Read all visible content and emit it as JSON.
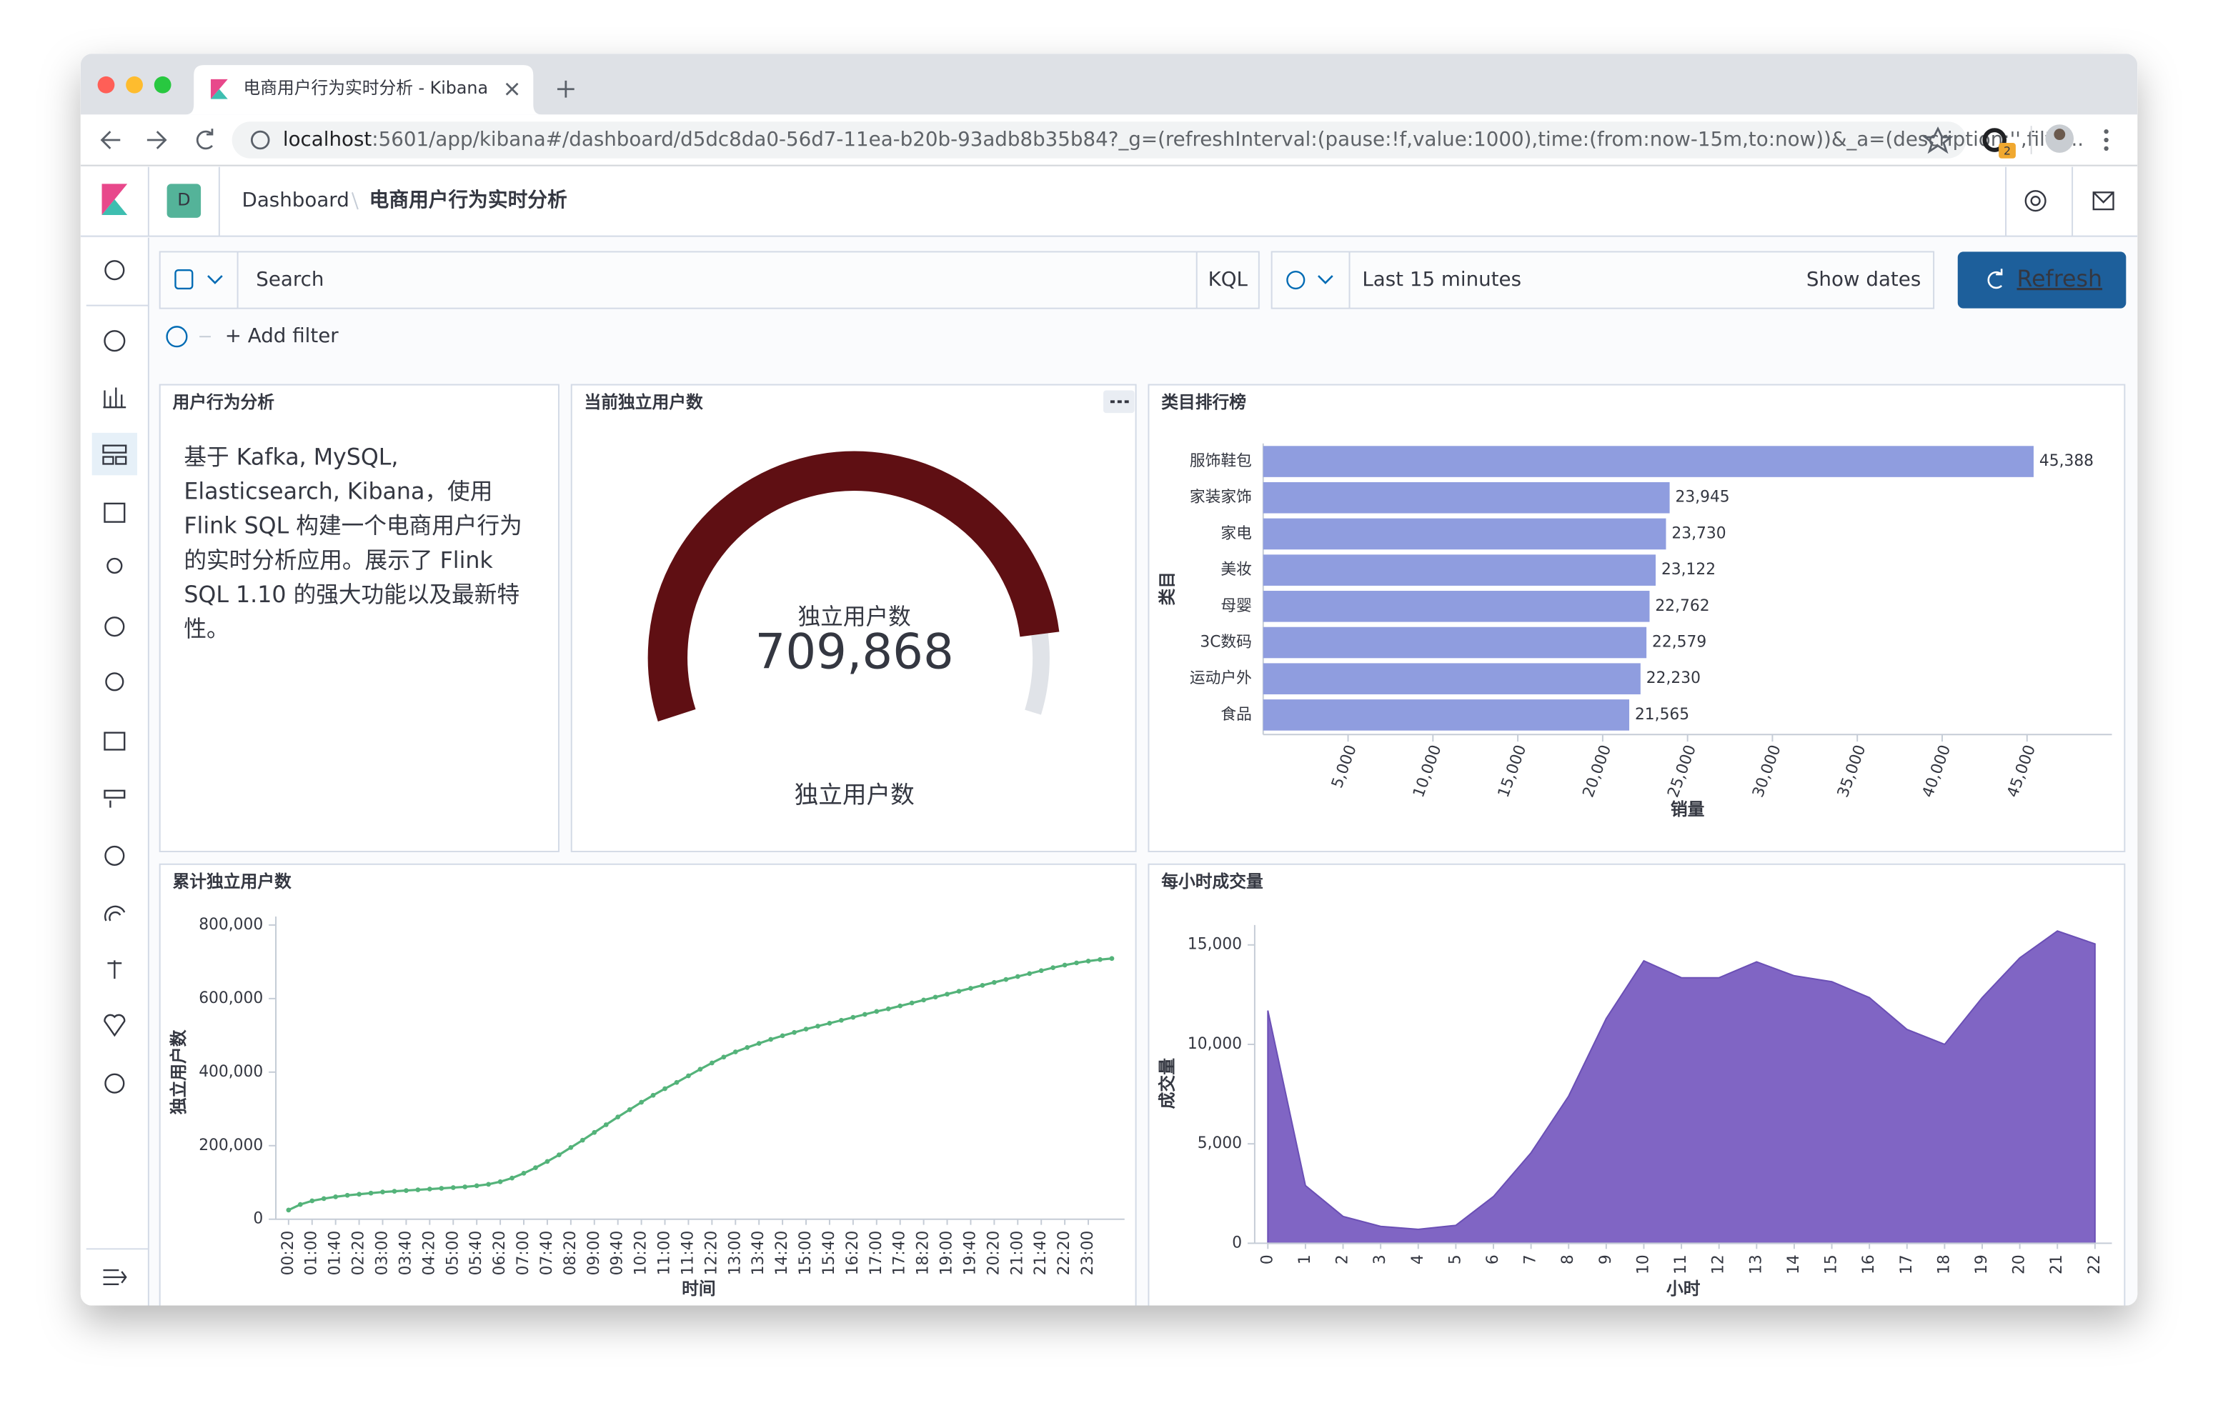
{
  "browser": {
    "tab_title": "电商用户行为实时分析 - Kibana",
    "url_host": "localhost",
    "url_rest": ":5601/app/kibana#/dashboard/d5dc8da0-56d7-11ea-b20b-93adb8b35b84?_g=(refreshInterval:(pause:!f,value:1000),time:(from:now-15m,to:now))&_a=(description:'',filte...",
    "extension_badge": "2"
  },
  "kibana": {
    "space_initial": "D",
    "breadcrumbs": [
      "Dashboard",
      "电商用户行为实时分析"
    ],
    "search_placeholder": "Search",
    "query_language": "KQL",
    "time_range": "Last 15 minutes",
    "show_dates": "Show dates",
    "refresh": "Refresh",
    "add_filter": "+ Add filter"
  },
  "panels": [
    {
      "title": "用户行为分析",
      "lines": [
        "基于 Kafka, MySQL,",
        "Elasticsearch, Kibana，使用",
        "Flink SQL 构建一个电商用户行为",
        "的实时分析应用。展示了 Flink",
        "SQL 1.10 的强大功能以及最新特",
        "性。"
      ]
    }
  ],
  "chart_data": [
    {
      "type": "gauge",
      "title": "当前独立用户数",
      "label": "独立用户数",
      "value": 709868,
      "value_label": "709,868",
      "sublabel": "独立用户数",
      "ylim": [
        0,
        800000
      ],
      "color": "#5f0f13"
    },
    {
      "type": "hbar",
      "title": "类目排行榜",
      "categories": [
        "服饰鞋包",
        "家装家饰",
        "家电",
        "美妆",
        "母婴",
        "3C数码",
        "运动户外",
        "食品"
      ],
      "values": [
        45388,
        23945,
        23730,
        23122,
        22762,
        22579,
        22230,
        21565
      ],
      "value_labels": [
        "45,388",
        "23,945",
        "23,730",
        "23,122",
        "22,762",
        "22,579",
        "22,230",
        "21,565"
      ],
      "color": "#8f9ddf",
      "xlim": [
        0,
        50000
      ],
      "xticks": [
        {
          "value": 5000,
          "label": "5,000"
        },
        {
          "value": 10000,
          "label": "10,000"
        },
        {
          "value": 15000,
          "label": "15,000"
        },
        {
          "value": 20000,
          "label": "20,000"
        },
        {
          "value": 25000,
          "label": "25,000"
        },
        {
          "value": 30000,
          "label": "30,000"
        },
        {
          "value": 35000,
          "label": "35,000"
        },
        {
          "value": 40000,
          "label": "40,000"
        },
        {
          "value": 45000,
          "label": "45,000"
        }
      ],
      "xlabel": "销量",
      "ylabel": "类目"
    },
    {
      "type": "line",
      "title": "累计独立用户数",
      "xlabel": "时间",
      "ylabel": "独立用户数",
      "color": "#54b37a",
      "categories": [
        "00:20",
        null,
        "01:00",
        null,
        "01:40",
        null,
        "02:20",
        null,
        "03:00",
        null,
        "03:40",
        null,
        "04:20",
        null,
        "05:00",
        null,
        "05:40",
        null,
        "06:20",
        null,
        "07:00",
        null,
        "07:40",
        null,
        "08:20",
        null,
        "09:00",
        null,
        "09:40",
        null,
        "10:20",
        null,
        "11:00",
        null,
        "11:40",
        null,
        "12:20",
        null,
        "13:00",
        null,
        "13:40",
        null,
        "14:20",
        null,
        "15:00",
        null,
        "15:40",
        null,
        "16:20",
        null,
        "17:00",
        null,
        "17:40",
        null,
        "18:20",
        null,
        "19:00",
        null,
        "19:40",
        null,
        "20:20",
        null,
        "21:00",
        null,
        "21:40",
        null,
        "22:20",
        null,
        "23:00",
        null,
        null
      ],
      "values": [
        25000,
        40000,
        50000,
        56000,
        61000,
        65000,
        68000,
        71000,
        74000,
        76000,
        78000,
        80000,
        82000,
        84000,
        86000,
        88000,
        91000,
        95000,
        102000,
        112000,
        125000,
        140000,
        157000,
        175000,
        195000,
        215000,
        236000,
        257000,
        278000,
        298000,
        318000,
        337000,
        355000,
        372000,
        390000,
        408000,
        425000,
        441000,
        455000,
        467000,
        478000,
        489000,
        499000,
        508000,
        517000,
        525000,
        533000,
        541000,
        549000,
        557000,
        565000,
        572000,
        580000,
        588000,
        596000,
        604000,
        612000,
        620000,
        628000,
        636000,
        644000,
        652000,
        660000,
        668000,
        676000,
        684000,
        691000,
        697000,
        702000,
        706000,
        709000
      ],
      "ylim": [
        0,
        800000
      ],
      "yticks": [
        0,
        {
          "value": 200000,
          "label": "200,000"
        },
        {
          "value": 400000,
          "label": "400,000"
        },
        {
          "value": 600000,
          "label": "600,000"
        },
        {
          "value": 800000,
          "label": "800,000"
        }
      ]
    },
    {
      "type": "area",
      "title": "每小时成交量",
      "xlabel": "小时",
      "ylabel": "成交量",
      "color": "#8065c4",
      "x": [
        0,
        1,
        2,
        3,
        4,
        5,
        6,
        7,
        8,
        9,
        10,
        11,
        12,
        13,
        14,
        15,
        16,
        17,
        18,
        19,
        20,
        21,
        22
      ],
      "values": [
        11700,
        2900,
        1350,
        850,
        700,
        900,
        2350,
        4550,
        7400,
        11300,
        14200,
        13350,
        13350,
        14150,
        13450,
        13150,
        12350,
        10750,
        10000,
        12350,
        14350,
        15700,
        15050
      ],
      "xlim": [
        -0.35,
        22.45
      ],
      "ylim": [
        0,
        16000
      ],
      "yticks": [
        0,
        {
          "value": 5000,
          "label": "5,000"
        },
        {
          "value": 10000,
          "label": "10,000"
        },
        {
          "value": 15000,
          "label": "15,000"
        }
      ]
    }
  ]
}
